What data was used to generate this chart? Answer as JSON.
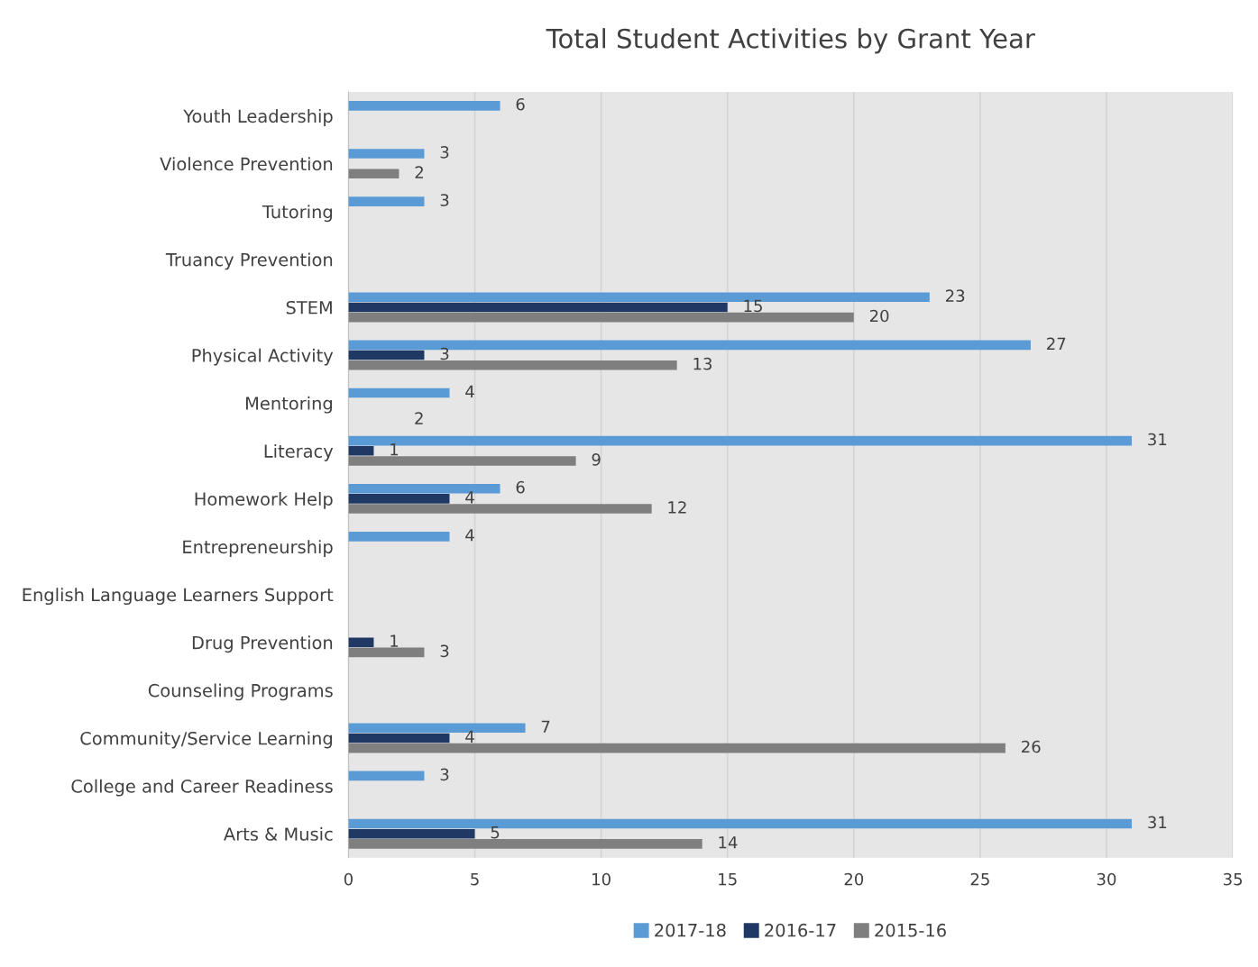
{
  "chart_data": {
    "type": "bar",
    "orientation": "horizontal",
    "title": "Total Student Activities by Grant Year",
    "categories": [
      "Youth Leadership",
      "Violence Prevention",
      "Tutoring",
      "Truancy Prevention",
      "STEM",
      "Physical Activity",
      "Mentoring",
      "Literacy",
      "Homework Help",
      "Entrepreneurship",
      "English Language Learners Support",
      "Drug Prevention",
      "Counseling Programs",
      "Community/Service Learning",
      "College and Career Readiness",
      "Arts & Music"
    ],
    "series": [
      {
        "name": "2017-18",
        "color": "#5b9bd5",
        "values": [
          6,
          3,
          3,
          null,
          23,
          27,
          4,
          31,
          6,
          4,
          null,
          null,
          null,
          7,
          3,
          31
        ]
      },
      {
        "name": "2016-17",
        "color": "#203864",
        "values": [
          null,
          null,
          null,
          null,
          15,
          3,
          null,
          1,
          4,
          null,
          null,
          1,
          null,
          4,
          null,
          5
        ]
      },
      {
        "name": "2015-16",
        "color": "#7f7f7f",
        "values": [
          null,
          2,
          null,
          null,
          20,
          13,
          null,
          9,
          12,
          null,
          null,
          3,
          null,
          26,
          null,
          14
        ]
      }
    ],
    "annotations": [
      "2"
    ],
    "xlim": [
      0,
      35
    ],
    "xticks": [
      0,
      5,
      10,
      15,
      20,
      25,
      30,
      35
    ],
    "grid": "x",
    "legend": "bottom",
    "data_labels": true
  }
}
